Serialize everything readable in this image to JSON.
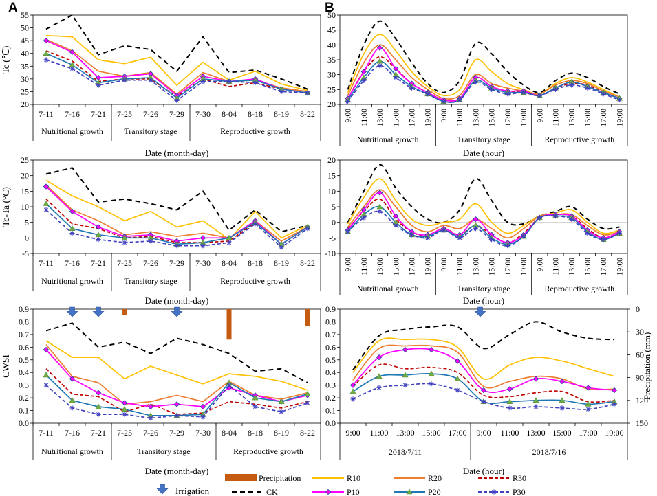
{
  "panel_letters": [
    "A",
    "B"
  ],
  "series_styles": [
    {
      "key": "CK",
      "color": "#000000",
      "dash": "7,5",
      "marker": "none"
    },
    {
      "key": "R10",
      "color": "#FFC000",
      "dash": "",
      "marker": "none"
    },
    {
      "key": "R20",
      "color": "#ED7D31",
      "dash": "",
      "marker": "none"
    },
    {
      "key": "R30",
      "color": "#C00000",
      "dash": "5,3",
      "marker": "none"
    },
    {
      "key": "P10",
      "color": "#FF00FF",
      "dash": "",
      "marker": "diamond"
    },
    {
      "key": "P20",
      "color": "#1F78B4",
      "dash": "",
      "marker": "triangle"
    },
    {
      "key": "P30",
      "color": "#4040C0",
      "dash": "5,3",
      "marker": "star"
    }
  ],
  "legend": {
    "precipitation_label": "Precipitation",
    "irrigation_label": "Irrigation",
    "precipitation_color": "#C55A11",
    "irrigation_color": "#4472C4",
    "entries": [
      "CK",
      "R10",
      "R20",
      "R30",
      "P10",
      "P20",
      "P30"
    ]
  },
  "chart_data": [
    {
      "id": "A1",
      "type": "line",
      "ylabel": "Tc (℃)",
      "xlabel": "Date (month-day)",
      "ylim": [
        20,
        55
      ],
      "yticks": [
        20,
        25,
        30,
        35,
        40,
        45,
        50,
        55
      ],
      "categories": [
        "7-11",
        "7-16",
        "7-21",
        "7-25",
        "7-26",
        "7-29",
        "7-30",
        "8-04",
        "8-18",
        "8-19",
        "8-22"
      ],
      "stages": [
        "Nutritional growth",
        "Transitory stage",
        "Reproductive growth"
      ],
      "series": [
        {
          "name": "CK",
          "values": [
            49.5,
            55,
            39.5,
            43,
            41.5,
            33,
            46.5,
            32.5,
            33.5,
            30,
            26
          ]
        },
        {
          "name": "R10",
          "values": [
            47,
            46.5,
            37.5,
            36,
            38.5,
            27.5,
            36.5,
            29.5,
            33,
            28,
            25.5
          ]
        },
        {
          "name": "R20",
          "values": [
            45.5,
            41,
            33,
            31,
            32.5,
            24,
            32.5,
            29,
            29.5,
            26.5,
            25
          ]
        },
        {
          "name": "R30",
          "values": [
            41,
            37,
            29,
            30,
            30,
            23,
            30,
            27,
            28.5,
            26,
            24.5
          ]
        },
        {
          "name": "P10",
          "values": [
            45,
            40.5,
            30.5,
            31,
            32,
            23.5,
            31,
            29,
            30,
            26,
            24.5
          ]
        },
        {
          "name": "P20",
          "values": [
            40,
            35.5,
            28.5,
            30,
            30.5,
            22.5,
            30,
            29,
            29.5,
            26,
            24.5
          ]
        },
        {
          "name": "P30",
          "values": [
            37.5,
            34,
            27.5,
            29.5,
            29.5,
            21.5,
            29,
            29,
            28.5,
            25,
            24.5
          ]
        }
      ]
    },
    {
      "id": "B1",
      "type": "line",
      "ylabel": "",
      "xlabel": "Date (hour)",
      "ylim": [
        20,
        50
      ],
      "yticks": [
        20,
        25,
        30,
        35,
        40,
        45,
        50
      ],
      "categories": [
        "9:00",
        "11:00",
        "13:00",
        "15:00",
        "17:00",
        "19:00",
        "9:00",
        "11:00",
        "13:00",
        "15:00",
        "17:00",
        "19:00",
        "9:00",
        "11:00",
        "13:00",
        "15:00",
        "17:00",
        "19:00"
      ],
      "stages": [
        "Nutritional growth",
        "Transitory stage",
        "Reproductive growth"
      ],
      "series": [
        {
          "name": "CK",
          "values": [
            25,
            40,
            48,
            42,
            34,
            27,
            24,
            28,
            40.5,
            37,
            31,
            26.5,
            24,
            28,
            30.5,
            29,
            26,
            23.5
          ]
        },
        {
          "name": "R10",
          "values": [
            24,
            37,
            43.5,
            38,
            31,
            26,
            23,
            25,
            35,
            31,
            27,
            25,
            23.5,
            27,
            29,
            27.5,
            25,
            22.5
          ]
        },
        {
          "name": "R20",
          "values": [
            23,
            34,
            40,
            35,
            29,
            25,
            22,
            23,
            30,
            27,
            25.5,
            24.5,
            23.5,
            26.5,
            28,
            27,
            24.5,
            22.5
          ]
        },
        {
          "name": "R30",
          "values": [
            22,
            31,
            36,
            32,
            27,
            24,
            21.5,
            22,
            29,
            26,
            24.5,
            24,
            23,
            25.5,
            27,
            26.5,
            24,
            22
          ]
        },
        {
          "name": "P10",
          "values": [
            22,
            31,
            39,
            32,
            27,
            24,
            21.5,
            22,
            29,
            26,
            24.5,
            24.5,
            23,
            25.5,
            27.5,
            26,
            24,
            22
          ]
        },
        {
          "name": "P20",
          "values": [
            21.5,
            29,
            34.5,
            30,
            26,
            23.5,
            21,
            21.5,
            28,
            25.5,
            24,
            24,
            23,
            25.5,
            27.5,
            26,
            24,
            22
          ]
        },
        {
          "name": "P30",
          "values": [
            21,
            28,
            33,
            29,
            25.5,
            23.5,
            21,
            21.5,
            27.5,
            25,
            23.5,
            24,
            23,
            25,
            26.5,
            25.5,
            23.5,
            21.5
          ]
        }
      ]
    },
    {
      "id": "A2",
      "type": "line",
      "ylabel": "Tc-Ta (°C)",
      "xlabel": "Date (month-day)",
      "ylim": [
        -5,
        25
      ],
      "yticks": [
        -5,
        0,
        5,
        10,
        15,
        20,
        25
      ],
      "categories": [
        "7-11",
        "7-16",
        "7-21",
        "7-25",
        "7-26",
        "7-29",
        "7-30",
        "8-04",
        "8-18",
        "8-19",
        "8-22"
      ],
      "stages": [
        "Nutritional growth",
        "Transitory stage",
        "Reproductive growth"
      ],
      "series": [
        {
          "name": "CK",
          "values": [
            20.5,
            22.5,
            11.5,
            12.5,
            11,
            9,
            15,
            2.5,
            9,
            2,
            4
          ]
        },
        {
          "name": "R10",
          "values": [
            18.5,
            13.5,
            10,
            5.5,
            8.5,
            3.5,
            5.5,
            -0.5,
            8.5,
            0,
            4
          ]
        },
        {
          "name": "R20",
          "values": [
            17,
            9,
            5.5,
            1,
            2,
            0.5,
            1.5,
            0,
            5.5,
            -1,
            3.5
          ]
        },
        {
          "name": "R30",
          "values": [
            12.5,
            4.5,
            3,
            0,
            0.5,
            -1.5,
            -1.5,
            -1,
            5,
            -2,
            3.5
          ]
        },
        {
          "name": "P10",
          "values": [
            16.5,
            8.5,
            3.5,
            0.5,
            1,
            -1,
            0,
            0,
            5.5,
            -2,
            3.5
          ]
        },
        {
          "name": "P20",
          "values": [
            11,
            3,
            1,
            0,
            0,
            -2,
            -1.5,
            0,
            5,
            -2,
            3.5
          ]
        },
        {
          "name": "P30",
          "values": [
            9,
            1.5,
            -0.5,
            -1.5,
            -1,
            -2.5,
            -2.5,
            -1.5,
            4.5,
            -3,
            3
          ]
        }
      ]
    },
    {
      "id": "B2",
      "type": "line",
      "ylabel": "",
      "xlabel": "Date (hour)",
      "ylim": [
        -10,
        20
      ],
      "yticks": [
        -10,
        -5,
        0,
        5,
        10,
        15,
        20
      ],
      "categories": [
        "9:00",
        "11:00",
        "13:00",
        "15:00",
        "17:00",
        "19:00",
        "9:00",
        "11:00",
        "13:00",
        "15:00",
        "17:00",
        "19:00",
        "9:00",
        "11:00",
        "13:00",
        "15:00",
        "17:00",
        "19:00"
      ],
      "stages": [
        "Nutritional growth",
        "Transitory stage",
        "Reproductive growth"
      ],
      "series": [
        {
          "name": "CK",
          "values": [
            0,
            10,
            18.5,
            11,
            5,
            1,
            0,
            4,
            14,
            7,
            0,
            -0.5,
            2,
            3.5,
            5,
            1,
            -2,
            -1.5
          ]
        },
        {
          "name": "R10",
          "values": [
            -0.5,
            8,
            14,
            7,
            1,
            -1,
            0,
            1,
            6,
            0,
            -3.5,
            -1,
            2,
            3,
            4,
            0,
            -3.5,
            -2.5
          ]
        },
        {
          "name": "R20",
          "values": [
            -1.5,
            5,
            10.5,
            5,
            -1,
            -3,
            -1,
            -2,
            1,
            -2,
            -5,
            -2,
            2,
            2.5,
            2.5,
            -1,
            -4,
            -3
          ]
        },
        {
          "name": "R30",
          "values": [
            -2,
            3.5,
            7.5,
            1,
            -3,
            -4.5,
            -2,
            -4,
            -1,
            -4,
            -6.5,
            -3.5,
            1.5,
            2.5,
            2,
            -2,
            -5,
            -3.5
          ]
        },
        {
          "name": "P10",
          "values": [
            -2.5,
            4,
            9.5,
            2,
            -3,
            -4,
            -2,
            -4,
            1,
            -4,
            -6.5,
            -4,
            1.5,
            2.5,
            2,
            -2.5,
            -5,
            -3
          ]
        },
        {
          "name": "P20",
          "values": [
            -3,
            2.5,
            5,
            0,
            -4,
            -4.5,
            -2.5,
            -4.5,
            -1,
            -5,
            -7,
            -4.5,
            1.5,
            2,
            1.5,
            -3,
            -5.5,
            -3.5
          ]
        },
        {
          "name": "P30",
          "values": [
            -3,
            1.5,
            3.5,
            -1,
            -4,
            -5,
            -2.5,
            -5,
            -2,
            -5.5,
            -7.5,
            -4.5,
            1.5,
            2,
            1,
            -3.5,
            -5.5,
            -3.5
          ]
        }
      ]
    },
    {
      "id": "A3",
      "type": "line",
      "ylabel": "CWSI",
      "xlabel": "Date (month-day)",
      "ylim": [
        0,
        0.9
      ],
      "yticks": [
        0,
        0.1,
        0.2,
        0.3,
        0.4,
        0.5,
        0.6,
        0.7,
        0.8,
        0.9
      ],
      "y2label": "",
      "y2lim": [
        0,
        150
      ],
      "y2ticks": [
        0,
        30,
        60,
        90,
        120,
        150
      ],
      "categories": [
        "7-11",
        "7-16",
        "7-21",
        "7-25",
        "7-26",
        "7-29",
        "7-30",
        "8-04",
        "8-18",
        "8-19",
        "8-22"
      ],
      "stages": [
        "Nutritional growth",
        "Transitory stage",
        "Reproductive growth"
      ],
      "precipitation_mm": [
        0,
        0,
        5,
        8,
        0,
        0,
        0,
        40,
        0,
        0,
        22
      ],
      "irrigation_positions": [
        1,
        2,
        5
      ],
      "series": [
        {
          "name": "CK",
          "values": [
            0.73,
            0.79,
            0.6,
            0.64,
            0.55,
            0.67,
            0.62,
            0.55,
            0.41,
            0.43,
            0.32
          ]
        },
        {
          "name": "R10",
          "values": [
            0.65,
            0.52,
            0.52,
            0.35,
            0.45,
            0.38,
            0.31,
            0.39,
            0.37,
            0.33,
            0.26
          ]
        },
        {
          "name": "R20",
          "values": [
            0.62,
            0.37,
            0.32,
            0.15,
            0.17,
            0.22,
            0.17,
            0.33,
            0.22,
            0.19,
            0.24
          ]
        },
        {
          "name": "R30",
          "values": [
            0.43,
            0.23,
            0.21,
            0.09,
            0.15,
            0.07,
            0.08,
            0.17,
            0.15,
            0.12,
            0.17
          ]
        },
        {
          "name": "P10",
          "values": [
            0.58,
            0.35,
            0.24,
            0.16,
            0.13,
            0.15,
            0.13,
            0.28,
            0.22,
            0.17,
            0.22
          ]
        },
        {
          "name": "P20",
          "values": [
            0.38,
            0.18,
            0.13,
            0.11,
            0.06,
            0.06,
            0.07,
            0.32,
            0.2,
            0.17,
            0.23
          ]
        },
        {
          "name": "P30",
          "values": [
            0.3,
            0.12,
            0.07,
            0.07,
            0.04,
            0.06,
            0.05,
            0.3,
            0.13,
            0.09,
            0.16
          ]
        }
      ]
    },
    {
      "id": "B3",
      "type": "line",
      "ylabel": "",
      "xlabel": "Date (hour)",
      "ylim": [
        0,
        0.9
      ],
      "yticks": [
        0,
        0.1,
        0.2,
        0.3,
        0.4,
        0.5,
        0.6,
        0.7,
        0.8,
        0.9
      ],
      "y2label": "Precipitation (mm)",
      "y2lim": [
        0,
        150
      ],
      "y2ticks": [
        0,
        30,
        60,
        90,
        120,
        150
      ],
      "categories": [
        "9:00",
        "11:00",
        "13:00",
        "15:00",
        "17:00",
        "9:00",
        "11:00",
        "13:00",
        "15:00",
        "17:00",
        "19:00"
      ],
      "stages": [
        "2018/7/11",
        "2018/7/16"
      ],
      "irrigation_positions": [
        5
      ],
      "series": [
        {
          "name": "CK",
          "values": [
            0.42,
            0.69,
            0.74,
            0.76,
            0.76,
            0.59,
            0.7,
            0.8,
            0.72,
            0.67,
            0.66
          ]
        },
        {
          "name": "R10",
          "values": [
            0.4,
            0.65,
            0.66,
            0.66,
            0.6,
            0.35,
            0.46,
            0.52,
            0.49,
            0.43,
            0.37
          ]
        },
        {
          "name": "R20",
          "values": [
            0.34,
            0.59,
            0.61,
            0.61,
            0.56,
            0.29,
            0.33,
            0.37,
            0.35,
            0.27,
            0.27
          ]
        },
        {
          "name": "R30",
          "values": [
            0.29,
            0.46,
            0.43,
            0.44,
            0.4,
            0.22,
            0.21,
            0.24,
            0.25,
            0.17,
            0.18
          ]
        },
        {
          "name": "P10",
          "values": [
            0.3,
            0.52,
            0.58,
            0.58,
            0.49,
            0.26,
            0.27,
            0.35,
            0.33,
            0.28,
            0.26
          ]
        },
        {
          "name": "P20",
          "values": [
            0.25,
            0.37,
            0.38,
            0.39,
            0.35,
            0.17,
            0.17,
            0.18,
            0.18,
            0.15,
            0.17
          ]
        },
        {
          "name": "P30",
          "values": [
            0.19,
            0.28,
            0.3,
            0.31,
            0.26,
            0.17,
            0.12,
            0.13,
            0.12,
            0.11,
            0.15
          ]
        }
      ]
    }
  ]
}
